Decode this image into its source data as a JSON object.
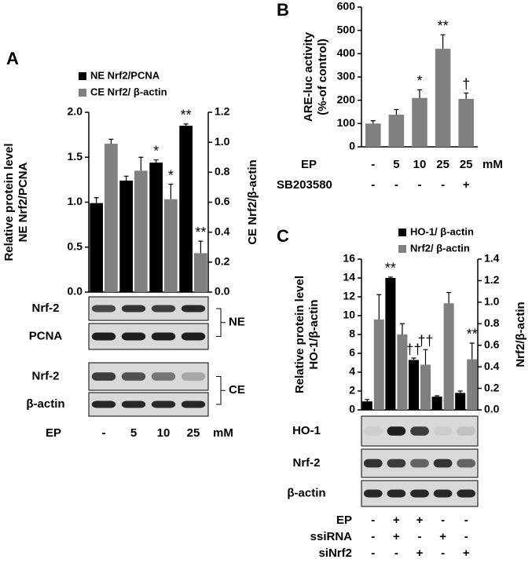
{
  "chart_data": [
    {
      "type": "bar",
      "panel": "A",
      "ylabel": [
        "Relative protein level",
        "NE Nrf2/PCNA"
      ],
      "y2label": "CE Nrf2/β-actin",
      "xlabel": "EP",
      "unit": "mM",
      "categories": [
        "-",
        "5",
        "10",
        "25"
      ],
      "series": [
        {
          "name": "NE Nrf2/PCNA",
          "color": "#000000",
          "values": [
            0.99,
            1.24,
            1.44,
            1.85
          ],
          "errors": [
            0.06,
            0.05,
            0.03,
            0.02
          ],
          "significance": [
            null,
            null,
            "*",
            "**"
          ]
        },
        {
          "name": "CE Nrf2/ β-actin",
          "color": "#808080",
          "axis": "y2",
          "values": [
            0.99,
            0.81,
            0.62,
            0.26
          ],
          "errors": [
            0.03,
            0.09,
            0.1,
            0.08
          ],
          "significance": [
            null,
            null,
            "*",
            "**"
          ]
        }
      ],
      "ylim": [
        0,
        2
      ],
      "yticks": [
        {
          "value": 0,
          "label": "0.0"
        },
        0.5,
        {
          "value": 1,
          "label": "1.0"
        },
        1.5,
        {
          "value": 2,
          "label": "2.0"
        }
      ],
      "y2lim": [
        0,
        1.2
      ],
      "y2ticks": [
        {
          "value": 0,
          "label": "0.0"
        },
        0.2,
        0.4,
        0.6,
        0.8,
        {
          "value": 1,
          "label": "1.0"
        },
        1.2
      ],
      "legend": "top-left",
      "blots": {
        "rows": [
          "Nrf-2",
          "PCNA",
          "Nrf-2",
          "β-actin"
        ],
        "groups": [
          "NE",
          "CE"
        ]
      }
    },
    {
      "type": "bar",
      "panel": "B",
      "ylabel": [
        "ARE-luc activity",
        "(%-of control)"
      ],
      "xlabel": "EP",
      "unit": "mM",
      "categories": [
        "-",
        "5",
        "10",
        "25",
        "25"
      ],
      "conditions": [
        {
          "name": "SB203580",
          "values": [
            "-",
            "-",
            "-",
            "-",
            "+"
          ]
        }
      ],
      "values": [
        100,
        138,
        210,
        421,
        206
      ],
      "errors": [
        12,
        22,
        35,
        60,
        25
      ],
      "significance": [
        null,
        null,
        "*",
        "**",
        "†"
      ],
      "color": "#808080",
      "ylim": [
        0,
        600
      ],
      "yticks": [
        0,
        100,
        200,
        300,
        400,
        500,
        600
      ]
    },
    {
      "type": "bar",
      "panel": "C",
      "ylabel": [
        "Relative protein level",
        "HO-1/β-actin"
      ],
      "y2label": "Nrf2/β-actin",
      "conditions": [
        {
          "name": "EP",
          "values": [
            "-",
            "+",
            "+",
            "-",
            "-"
          ]
        },
        {
          "name": "ssiRNA",
          "values": [
            "-",
            "+",
            "-",
            "+",
            "-"
          ]
        },
        {
          "name": "siNrf2",
          "values": [
            "-",
            "-",
            "+",
            "-",
            "+"
          ]
        }
      ],
      "series": [
        {
          "name": "HO-1/ β-actin",
          "color": "#000000",
          "values": [
            0.9,
            14.0,
            5.3,
            1.4,
            1.8
          ],
          "errors": [
            0.2,
            0.1,
            0.2,
            0.1,
            0.2
          ],
          "significance": [
            null,
            "**",
            "††",
            null,
            null
          ]
        },
        {
          "name": "Nrf2/ β-actin",
          "color": "#808080",
          "axis": "y2",
          "values": [
            0.84,
            0.7,
            0.42,
            0.99,
            0.47
          ],
          "errors": [
            0.23,
            0.1,
            0.14,
            0.1,
            0.15
          ],
          "significance": [
            null,
            null,
            "††",
            null,
            "**"
          ]
        }
      ],
      "ylim": [
        0,
        16
      ],
      "yticks": [
        0,
        2,
        4,
        6,
        8,
        10,
        12,
        14,
        16
      ],
      "y2lim": [
        0,
        1.4
      ],
      "y2ticks": [
        {
          "value": 0,
          "label": "0.0"
        },
        0.2,
        0.4,
        0.6,
        0.8,
        {
          "value": 1,
          "label": "1.0"
        },
        1.2,
        1.4
      ],
      "legend": "top-left",
      "blots": {
        "rows": [
          "HO-1",
          "Nrf-2",
          "β-actin"
        ]
      }
    }
  ]
}
